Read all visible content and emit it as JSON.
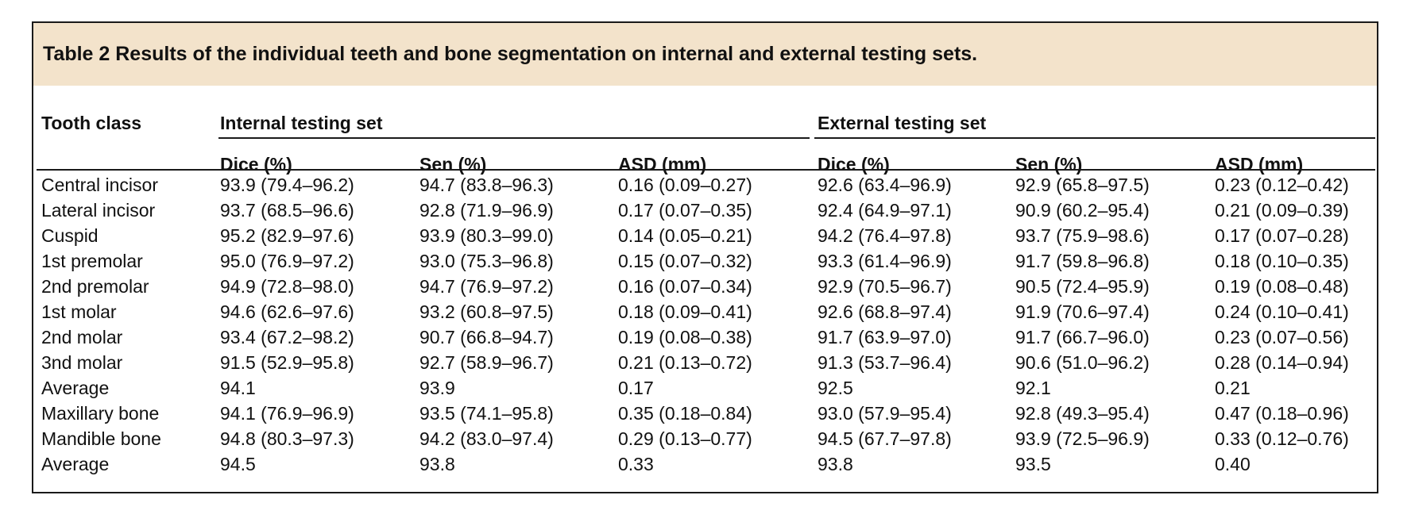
{
  "table": {
    "caption": "Table 2 Results of the individual teeth and bone segmentation on internal and external testing sets.",
    "header_rowlabel": "Tooth class",
    "group_internal": "Internal testing set",
    "group_external": "External testing set",
    "col_headers": [
      "Dice (%)",
      "Sen (%)",
      "ASD (mm)",
      "Dice (%)",
      "Sen (%)",
      "ASD (mm)"
    ],
    "rows": [
      [
        "Central incisor",
        "93.9 (79.4–96.2)",
        "94.7 (83.8–96.3)",
        "0.16 (0.09–0.27)",
        "92.6 (63.4–96.9)",
        "92.9 (65.8–97.5)",
        "0.23 (0.12–0.42)"
      ],
      [
        "Lateral incisor",
        "93.7 (68.5–96.6)",
        "92.8 (71.9–96.9)",
        "0.17 (0.07–0.35)",
        "92.4 (64.9–97.1)",
        "90.9 (60.2–95.4)",
        "0.21 (0.09–0.39)"
      ],
      [
        "Cuspid",
        "95.2 (82.9–97.6)",
        "93.9 (80.3–99.0)",
        "0.14 (0.05–0.21)",
        "94.2 (76.4–97.8)",
        "93.7 (75.9–98.6)",
        "0.17 (0.07–0.28)"
      ],
      [
        "1st premolar",
        "95.0 (76.9–97.2)",
        "93.0 (75.3–96.8)",
        "0.15 (0.07–0.32)",
        "93.3 (61.4–96.9)",
        "91.7 (59.8–96.8)",
        "0.18 (0.10–0.35)"
      ],
      [
        "2nd premolar",
        "94.9 (72.8–98.0)",
        "94.7 (76.9–97.2)",
        "0.16 (0.07–0.34)",
        "92.9 (70.5–96.7)",
        "90.5 (72.4–95.9)",
        "0.19 (0.08–0.48)"
      ],
      [
        "1st molar",
        "94.6 (62.6–97.6)",
        "93.2 (60.8–97.5)",
        "0.18 (0.09–0.41)",
        "92.6 (68.8–97.4)",
        "91.9 (70.6–97.4)",
        "0.24 (0.10–0.41)"
      ],
      [
        "2nd molar",
        "93.4 (67.2–98.2)",
        "90.7 (66.8–94.7)",
        "0.19 (0.08–0.38)",
        "91.7 (63.9–97.0)",
        "91.7 (66.7–96.0)",
        "0.23 (0.07–0.56)"
      ],
      [
        "3nd molar",
        "91.5 (52.9–95.8)",
        "92.7 (58.9–96.7)",
        "0.21 (0.13–0.72)",
        "91.3 (53.7–96.4)",
        "90.6 (51.0–96.2)",
        "0.28 (0.14–0.94)"
      ],
      [
        "Average",
        "94.1",
        "93.9",
        "0.17",
        "92.5",
        "92.1",
        "0.21"
      ],
      [
        "Maxillary bone",
        "94.1 (76.9–96.9)",
        "93.5 (74.1–95.8)",
        "0.35 (0.18–0.84)",
        "93.0 (57.9–95.4)",
        "92.8 (49.3–95.4)",
        "0.47 (0.18–0.96)"
      ],
      [
        "Mandible bone",
        "94.8 (80.3–97.3)",
        "94.2 (83.0–97.4)",
        "0.29 (0.13–0.77)",
        "94.5 (67.7–97.8)",
        "93.9 (72.5–96.9)",
        "0.33 (0.12–0.76)"
      ],
      [
        "Average",
        "94.5",
        "93.8",
        "0.33",
        "93.8",
        "93.5",
        "0.40"
      ]
    ]
  }
}
